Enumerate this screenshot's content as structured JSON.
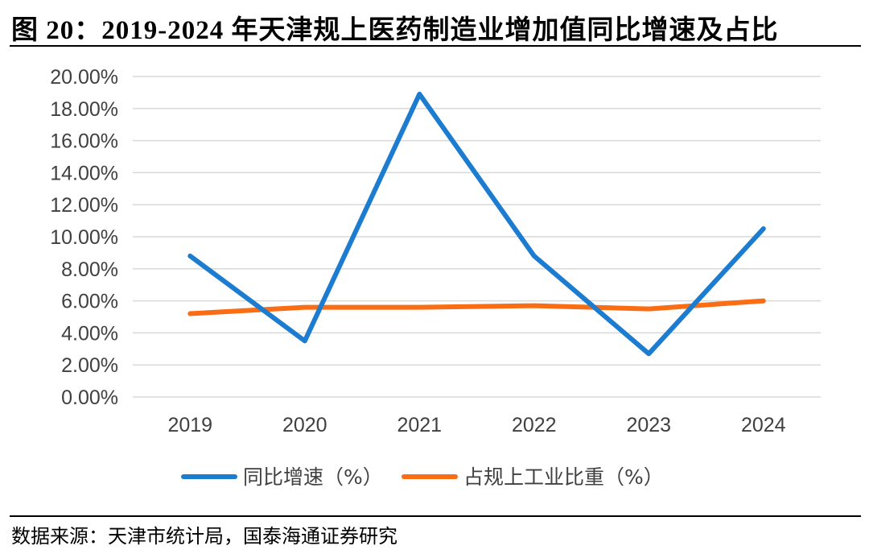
{
  "title": "图 20：2019-2024 年天津规上医药制造业增加值同比增速及占比",
  "source": "数据来源：天津市统计局，国泰海通证券研究",
  "colors": {
    "series1": "#1C7CCF",
    "series2": "#FA6D15",
    "grid": "#D9D9D9",
    "text": "#404040"
  },
  "chart_data": {
    "type": "line",
    "title": "2019-2024 年天津规上医药制造业增加值同比增速及占比",
    "categories": [
      "2019",
      "2020",
      "2021",
      "2022",
      "2023",
      "2024"
    ],
    "series": [
      {
        "name": "同比增速（%）",
        "values": [
          8.8,
          3.5,
          18.9,
          8.8,
          2.7,
          10.5
        ]
      },
      {
        "name": "占规上工业比重（%）",
        "values": [
          5.2,
          5.6,
          5.6,
          5.7,
          5.5,
          6.0
        ]
      }
    ],
    "ylim": [
      0,
      20
    ],
    "yticks": [
      0,
      2,
      4,
      6,
      8,
      10,
      12,
      14,
      16,
      18,
      20
    ],
    "ytick_labels": [
      "0.00%",
      "2.00%",
      "4.00%",
      "6.00%",
      "8.00%",
      "10.00%",
      "12.00%",
      "14.00%",
      "16.00%",
      "18.00%",
      "20.00%"
    ],
    "xlabel": "",
    "ylabel": "",
    "grid": true,
    "legend_position": "bottom"
  }
}
